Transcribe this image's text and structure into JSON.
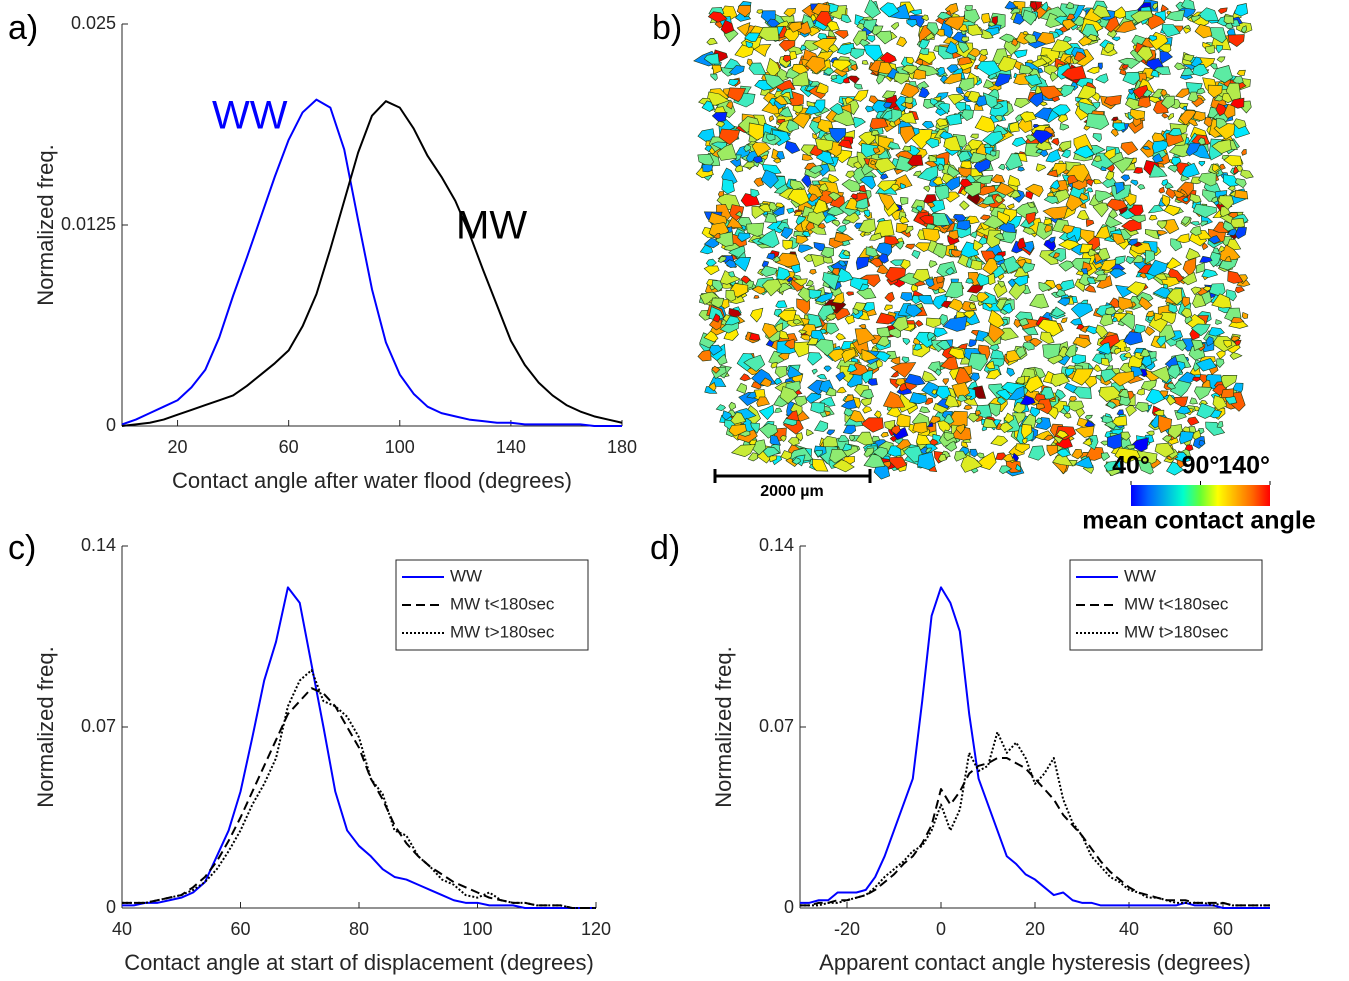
{
  "chart_data": [
    {
      "type": "line",
      "label": "a)",
      "xlabel": "Contact angle after water flood (degrees)",
      "ylabel": "Normalized freq.",
      "xlim": [
        0,
        180
      ],
      "xticks": [
        20,
        60,
        100,
        140,
        180
      ],
      "ylim": [
        0,
        0.025
      ],
      "yticks": [
        0,
        0.0125,
        0.025
      ],
      "legend": false,
      "x": [
        0,
        5,
        10,
        15,
        20,
        25,
        30,
        35,
        40,
        45,
        50,
        55,
        60,
        65,
        70,
        75,
        80,
        85,
        90,
        95,
        100,
        105,
        110,
        115,
        120,
        125,
        130,
        135,
        140,
        145,
        150,
        155,
        160,
        165,
        170,
        175,
        180
      ],
      "series": [
        {
          "name": "WW",
          "color": "#0000ff",
          "linestyle": "solid",
          "values": [
            0.0001,
            0.0004,
            0.0008,
            0.0012,
            0.0016,
            0.0024,
            0.0035,
            0.0055,
            0.0081,
            0.0105,
            0.013,
            0.0155,
            0.0178,
            0.0195,
            0.0203,
            0.0198,
            0.0172,
            0.0128,
            0.0085,
            0.0052,
            0.0032,
            0.002,
            0.0012,
            0.0008,
            0.0006,
            0.0004,
            0.0003,
            0.0002,
            0.0002,
            0.0001,
            0.0001,
            0.0001,
            0.0001,
            0.0001,
            0,
            0,
            0
          ]
        },
        {
          "name": "MW",
          "color": "#000000",
          "linestyle": "solid",
          "values": [
            0,
            0.0001,
            0.0002,
            0.0004,
            0.0007,
            0.001,
            0.0013,
            0.0016,
            0.0019,
            0.0025,
            0.0032,
            0.0039,
            0.0047,
            0.0062,
            0.0082,
            0.011,
            0.014,
            0.017,
            0.0193,
            0.0202,
            0.0198,
            0.0185,
            0.0168,
            0.0155,
            0.014,
            0.012,
            0.0097,
            0.0075,
            0.0053,
            0.0038,
            0.0027,
            0.0019,
            0.0013,
            0.0009,
            0.0006,
            0.0004,
            0.0002
          ]
        }
      ]
    },
    {
      "type": "image",
      "label": "b)",
      "scale_bar": "2000 µm",
      "colorbar_label": "mean contact angle",
      "clim": [
        40,
        140
      ],
      "colorbar_ticks": [
        {
          "value": 40,
          "label": "40°"
        },
        {
          "value": 90,
          "label": "90°"
        },
        {
          "value": 140,
          "label": "140°"
        }
      ]
    },
    {
      "type": "line",
      "label": "c)",
      "xlabel": "Contact angle at start of displacement (degrees)",
      "ylabel": "Normalized freq.",
      "xlim": [
        40,
        120
      ],
      "xticks": [
        40,
        60,
        80,
        100,
        120
      ],
      "ylim": [
        0,
        0.14
      ],
      "yticks": [
        0,
        0.07,
        0.14
      ],
      "legend": "top-right",
      "x": [
        40,
        42,
        44,
        46,
        48,
        50,
        52,
        54,
        56,
        58,
        60,
        62,
        64,
        66,
        68,
        70,
        72,
        74,
        76,
        78,
        80,
        82,
        84,
        86,
        88,
        90,
        92,
        94,
        96,
        98,
        100,
        102,
        104,
        106,
        108,
        110,
        112,
        114,
        116,
        118,
        120
      ],
      "series": [
        {
          "name": "WW",
          "color": "#0000ff",
          "linestyle": "solid",
          "values": [
            0.001,
            0.001,
            0.002,
            0.002,
            0.003,
            0.004,
            0.006,
            0.01,
            0.02,
            0.03,
            0.045,
            0.066,
            0.088,
            0.103,
            0.124,
            0.118,
            0.094,
            0.07,
            0.045,
            0.03,
            0.024,
            0.02,
            0.015,
            0.012,
            0.011,
            0.009,
            0.007,
            0.005,
            0.003,
            0.002,
            0.002,
            0.001,
            0.001,
            0.001,
            0,
            0,
            0,
            0,
            0,
            0,
            0
          ]
        },
        {
          "name": "MW t<180sec",
          "color": "#000000",
          "linestyle": "dashed",
          "values": [
            0.002,
            0.002,
            0.002,
            0.003,
            0.004,
            0.005,
            0.008,
            0.012,
            0.018,
            0.026,
            0.035,
            0.045,
            0.055,
            0.065,
            0.075,
            0.08,
            0.085,
            0.083,
            0.078,
            0.07,
            0.062,
            0.05,
            0.042,
            0.032,
            0.025,
            0.02,
            0.016,
            0.013,
            0.01,
            0.008,
            0.006,
            0.004,
            0.003,
            0.002,
            0.002,
            0.001,
            0.001,
            0.001,
            0,
            0,
            0
          ]
        },
        {
          "name": "MW t>180sec",
          "color": "#000000",
          "linestyle": "dotted",
          "values": [
            0.002,
            0.002,
            0.002,
            0.003,
            0.004,
            0.005,
            0.007,
            0.01,
            0.015,
            0.022,
            0.03,
            0.04,
            0.048,
            0.058,
            0.078,
            0.088,
            0.092,
            0.08,
            0.078,
            0.074,
            0.066,
            0.05,
            0.044,
            0.03,
            0.028,
            0.02,
            0.016,
            0.011,
            0.009,
            0.005,
            0.004,
            0.006,
            0.003,
            0.002,
            0.002,
            0.001,
            0.001,
            0.001,
            0,
            0,
            0
          ]
        }
      ]
    },
    {
      "type": "line",
      "label": "d)",
      "xlabel": "Apparent contact angle hysteresis (degrees)",
      "ylabel": "Normalized freq.",
      "xlim": [
        -30,
        70
      ],
      "xticks": [
        -20,
        0,
        20,
        40,
        60
      ],
      "ylim": [
        0,
        0.14
      ],
      "yticks": [
        0,
        0.07,
        0.14
      ],
      "legend": "top-right",
      "x": [
        -30,
        -28,
        -26,
        -24,
        -22,
        -20,
        -18,
        -16,
        -14,
        -12,
        -10,
        -8,
        -6,
        -4,
        -2,
        0,
        2,
        4,
        6,
        8,
        10,
        12,
        14,
        16,
        18,
        20,
        22,
        24,
        26,
        28,
        30,
        32,
        34,
        36,
        38,
        40,
        42,
        44,
        46,
        48,
        50,
        52,
        54,
        56,
        58,
        60,
        62,
        64,
        66,
        68,
        70
      ],
      "series": [
        {
          "name": "WW",
          "color": "#0000ff",
          "linestyle": "solid",
          "values": [
            0.002,
            0.002,
            0.003,
            0.003,
            0.006,
            0.006,
            0.006,
            0.007,
            0.012,
            0.02,
            0.03,
            0.04,
            0.05,
            0.08,
            0.113,
            0.124,
            0.118,
            0.107,
            0.075,
            0.05,
            0.04,
            0.03,
            0.02,
            0.017,
            0.013,
            0.011,
            0.008,
            0.005,
            0.006,
            0.003,
            0.002,
            0.002,
            0.001,
            0.001,
            0.001,
            0.001,
            0.001,
            0.001,
            0.001,
            0.001,
            0.001,
            0.002,
            0.001,
            0.001,
            0.001,
            0,
            0,
            0,
            0,
            0,
            0
          ]
        },
        {
          "name": "MW t<180sec",
          "color": "#000000",
          "linestyle": "dashed",
          "values": [
            0.001,
            0.001,
            0.002,
            0.002,
            0.003,
            0.003,
            0.004,
            0.005,
            0.007,
            0.01,
            0.013,
            0.017,
            0.02,
            0.025,
            0.032,
            0.046,
            0.04,
            0.045,
            0.052,
            0.055,
            0.056,
            0.058,
            0.058,
            0.056,
            0.054,
            0.05,
            0.046,
            0.042,
            0.036,
            0.032,
            0.028,
            0.023,
            0.018,
            0.014,
            0.011,
            0.008,
            0.006,
            0.005,
            0.004,
            0.003,
            0.003,
            0.003,
            0.002,
            0.002,
            0.002,
            0.002,
            0.001,
            0.001,
            0.001,
            0.001,
            0.001
          ]
        },
        {
          "name": "MW t>180sec",
          "color": "#000000",
          "linestyle": "dotted",
          "values": [
            0.001,
            0.001,
            0.001,
            0.002,
            0.002,
            0.003,
            0.004,
            0.005,
            0.008,
            0.012,
            0.015,
            0.018,
            0.022,
            0.024,
            0.03,
            0.04,
            0.03,
            0.038,
            0.06,
            0.053,
            0.055,
            0.068,
            0.06,
            0.064,
            0.058,
            0.048,
            0.052,
            0.058,
            0.042,
            0.033,
            0.028,
            0.02,
            0.016,
            0.012,
            0.01,
            0.007,
            0.006,
            0.004,
            0.004,
            0.003,
            0.002,
            0.002,
            0.002,
            0.002,
            0.001,
            0.002,
            0.001,
            0.001,
            0.001,
            0.001,
            0.001
          ]
        }
      ]
    }
  ]
}
